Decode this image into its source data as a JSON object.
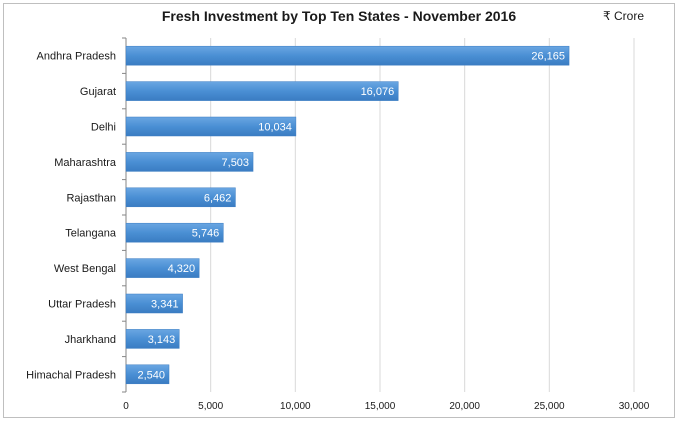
{
  "chart_data": {
    "type": "bar",
    "orientation": "horizontal",
    "title": "Fresh Investment by Top Ten States - November 2016",
    "unit_label": "₹ Crore",
    "xlabel": "",
    "ylabel": "",
    "xlim": [
      0,
      30000
    ],
    "xticks": [
      0,
      5000,
      10000,
      15000,
      20000,
      25000,
      30000
    ],
    "xtick_labels": [
      "0",
      "5,000",
      "10,000",
      "15,000",
      "20,000",
      "25,000",
      "30,000"
    ],
    "grid": true,
    "legend": "none",
    "bar_color": "#4a8fd4",
    "categories": [
      "Andhra Pradesh",
      "Gujarat",
      "Delhi",
      "Maharashtra",
      "Rajasthan",
      "Telangana",
      "West Bengal",
      "Uttar Pradesh",
      "Jharkhand",
      "Himachal Pradesh"
    ],
    "values": [
      26165,
      16076,
      10034,
      7503,
      6462,
      5746,
      4320,
      3341,
      3143,
      2540
    ],
    "data_labels": [
      "26,165",
      "16,076",
      "10,034",
      "7,503",
      "6,462",
      "5,746",
      "4,320",
      "3,341",
      "3,143",
      "2,540"
    ]
  }
}
